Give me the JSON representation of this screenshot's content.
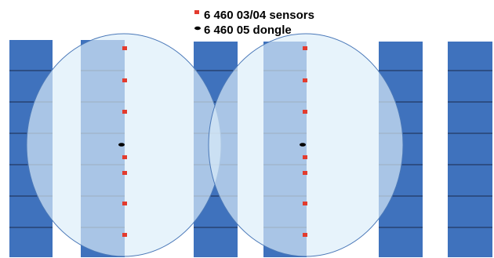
{
  "legend": {
    "sensor_label": "6 460 03/04 sensors",
    "dongle_label": "6 460 05 dongle"
  },
  "colors": {
    "column_fill": "#3f72bd",
    "column_lines": "#1b2a4a",
    "coverage_fill": "#dceef9",
    "coverage_stroke": "#4a78b8",
    "sensor_marker": "#e33b2e",
    "dongle_marker": "#000000",
    "background": "#ffffff"
  },
  "icons": {
    "sensor": "red-square-marker",
    "dongle": "black-ellipse-marker"
  },
  "rows_per_column": 7
}
